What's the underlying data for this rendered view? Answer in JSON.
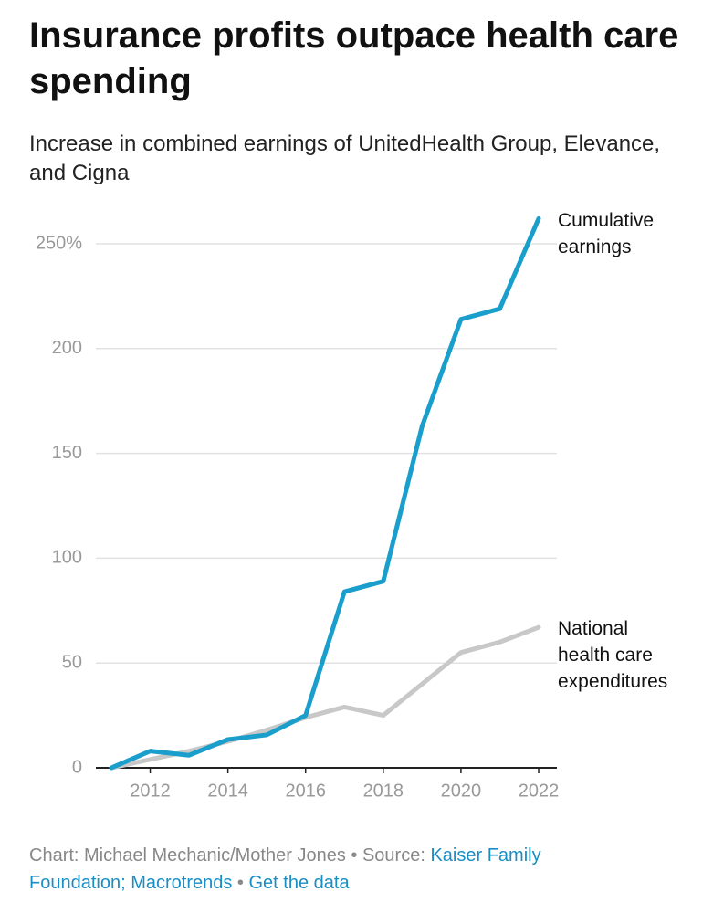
{
  "chart_data": {
    "type": "line",
    "title": "Insurance profits outpace health care spending",
    "subtitle": "Increase in combined earnings of UnitedHealth Group, Elevance, and Cigna",
    "x": [
      2011,
      2012,
      2013,
      2014,
      2015,
      2016,
      2017,
      2018,
      2019,
      2020,
      2021,
      2022
    ],
    "series": [
      {
        "name": "Cumulative earnings",
        "color": "#1a9ecb",
        "values": [
          0,
          8,
          6,
          13.5,
          15.7,
          25,
          84,
          89,
          163,
          214,
          219,
          262
        ]
      },
      {
        "name": "National health care expenditures",
        "color": "#c8c8c8",
        "values": [
          0,
          4,
          8,
          12.6,
          18,
          24,
          29,
          25,
          40,
          55,
          60,
          67
        ]
      }
    ],
    "xlim": [
      2011,
      2022
    ],
    "xticks": [
      2012,
      2014,
      2016,
      2018,
      2020,
      2022
    ],
    "ylim": [
      0,
      250
    ],
    "yticks": [
      0,
      50,
      100,
      150,
      200,
      {
        "value": 250,
        "label": "250%"
      }
    ],
    "grid": true,
    "footer": {
      "credit": "Chart: Michael Mechanic/Mother Jones",
      "separator": "•",
      "source_label": "Source:",
      "source_link": "Kaiser Family Foundation; Macrotrends",
      "data_link": "Get the data"
    }
  }
}
